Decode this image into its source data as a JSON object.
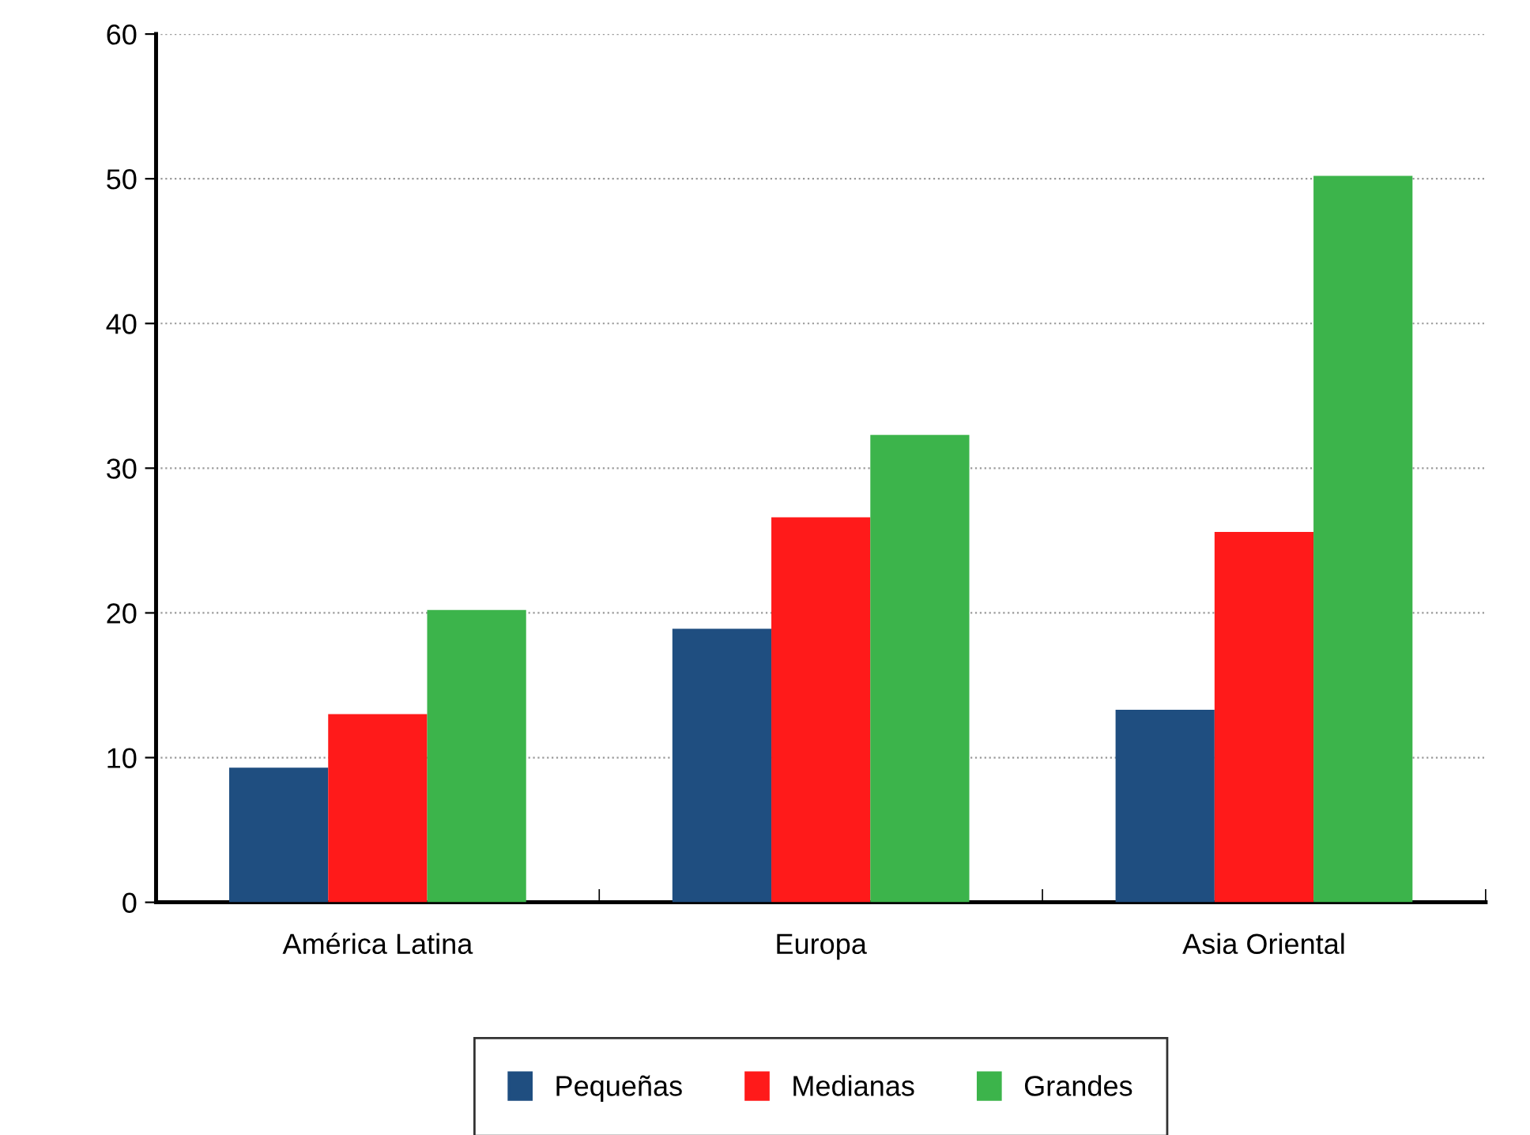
{
  "chart_data": {
    "type": "bar",
    "categories": [
      "América Latina",
      "Europa",
      "Asia Oriental"
    ],
    "series": [
      {
        "name": "Pequeñas",
        "color": "#1f4e80",
        "values": [
          9.3,
          18.9,
          13.3
        ]
      },
      {
        "name": "Medianas",
        "color": "#ff1a1a",
        "values": [
          13.0,
          26.6,
          25.6
        ]
      },
      {
        "name": "Grandes",
        "color": "#3cb44b",
        "values": [
          20.2,
          32.3,
          50.2
        ]
      }
    ],
    "ylim": [
      0,
      60
    ],
    "yticks": [
      0,
      10,
      20,
      30,
      40,
      50,
      60
    ],
    "grid": "y",
    "legend": "bottom"
  }
}
